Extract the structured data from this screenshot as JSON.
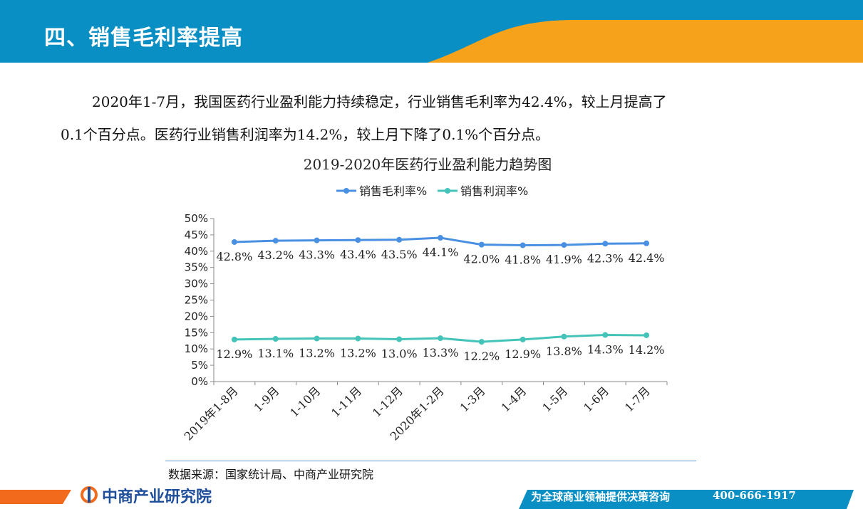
{
  "header": {
    "title": "四、销售毛利率提高"
  },
  "intro": {
    "line1": "2020年1-7月，我国医药行业盈利能力持续稳定，行业销售毛利率为42.4%，较上月提高了",
    "line2": "0.1个百分点。医药行业销售利润率为14.2%，较上月下降了0.1%个百分点。"
  },
  "colors": {
    "header_blue": "#0a8fc4",
    "header_orange": "#f7a21b",
    "series_gross": "#4a90e2",
    "series_profit": "#44c4b8",
    "footer_orange": "#f26b1d",
    "footer_blue": "#0a8fc4"
  },
  "chart_data": {
    "type": "line",
    "title": "2019-2020年医药行业盈利能力趋势图",
    "categories": [
      "2019年1-8月",
      "1-9月",
      "1-10月",
      "1-11月",
      "1-12月",
      "2020年1-2月",
      "1-3月",
      "1-4月",
      "1-5月",
      "1-6月",
      "1-7月"
    ],
    "series": [
      {
        "name": "销售毛利率%",
        "values": [
          42.8,
          43.2,
          43.3,
          43.4,
          43.5,
          44.1,
          42.0,
          41.8,
          41.9,
          42.3,
          42.4
        ],
        "labels": [
          "42.8%",
          "43.2%",
          "43.3%",
          "43.4%",
          "43.5%",
          "44.1%",
          "42.0%",
          "41.8%",
          "41.9%",
          "42.3%",
          "42.4%"
        ]
      },
      {
        "name": "销售利润率%",
        "values": [
          12.9,
          13.1,
          13.2,
          13.2,
          13.0,
          13.3,
          12.2,
          12.9,
          13.8,
          14.3,
          14.2
        ],
        "labels": [
          "12.9%",
          "13.1%",
          "13.2%",
          "13.2%",
          "13.0%",
          "13.3%",
          "12.2%",
          "12.9%",
          "13.8%",
          "14.3%",
          "14.2%"
        ]
      }
    ],
    "yticks": [
      "0%",
      "5%",
      "10%",
      "15%",
      "20%",
      "25%",
      "30%",
      "35%",
      "40%",
      "45%",
      "50%"
    ],
    "ylim": [
      0,
      50
    ],
    "legend": "top",
    "grid": false
  },
  "source": "数据来源：国家统计局、中商产业研究院",
  "footer": {
    "logo": "中商产业研究院",
    "slogan": "为全球商业领袖提供决策咨询",
    "phone": "400-666-1917"
  }
}
